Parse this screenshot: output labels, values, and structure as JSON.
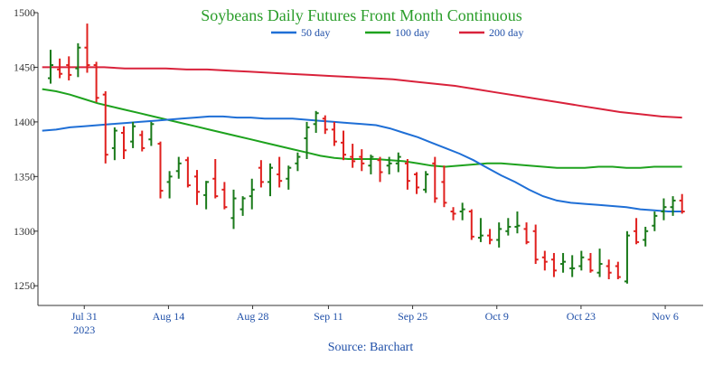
{
  "chart_data": {
    "type": "ohlc",
    "title": "Soybeans Daily Futures Front Month Continuous",
    "source": "Source: Barchart",
    "colors": {
      "title": "#2a9d2a",
      "up": "#1a7a1a",
      "down": "#e0201e",
      "ma50": "#1f6fd6",
      "ma100": "#1ea21e",
      "ma200": "#d9223b",
      "axis": "#333333"
    },
    "ylim": [
      1232,
      1500
    ],
    "y_ticks": [
      1250,
      1300,
      1350,
      1400,
      1450,
      1500
    ],
    "xlim": [
      -1.5,
      77.5
    ],
    "x_ticks": [
      {
        "i": 4,
        "label": "Jul 31",
        "sublabel": "2023"
      },
      {
        "i": 14,
        "label": "Aug 14",
        "sublabel": ""
      },
      {
        "i": 24,
        "label": "Aug 28",
        "sublabel": ""
      },
      {
        "i": 33,
        "label": "Sep 11",
        "sublabel": ""
      },
      {
        "i": 43,
        "label": "Sep 25",
        "sublabel": ""
      },
      {
        "i": 53,
        "label": "Oct 9",
        "sublabel": ""
      },
      {
        "i": 63,
        "label": "Oct 23",
        "sublabel": ""
      },
      {
        "i": 73,
        "label": "Nov 6",
        "sublabel": ""
      }
    ],
    "legend": [
      {
        "name": "50 day",
        "color": "#1f6fd6"
      },
      {
        "name": "100 day",
        "color": "#1ea21e"
      },
      {
        "name": "200 day",
        "color": "#d9223b"
      }
    ],
    "ohlc": [
      [
        1440,
        1466,
        1435,
        1452
      ],
      [
        1448,
        1458,
        1440,
        1444
      ],
      [
        1452,
        1460,
        1438,
        1443
      ],
      [
        1449,
        1472,
        1441,
        1468
      ],
      [
        1468,
        1490,
        1445,
        1452
      ],
      [
        1452,
        1455,
        1418,
        1422
      ],
      [
        1425,
        1428,
        1362,
        1370
      ],
      [
        1376,
        1395,
        1365,
        1392
      ],
      [
        1390,
        1396,
        1366,
        1374
      ],
      [
        1382,
        1400,
        1376,
        1396
      ],
      [
        1388,
        1392,
        1373,
        1376
      ],
      [
        1384,
        1400,
        1378,
        1398
      ],
      [
        1380,
        1382,
        1330,
        1337
      ],
      [
        1345,
        1355,
        1330,
        1350
      ],
      [
        1355,
        1368,
        1348,
        1362
      ],
      [
        1365,
        1368,
        1340,
        1342
      ],
      [
        1350,
        1356,
        1324,
        1336
      ],
      [
        1333,
        1346,
        1320,
        1345
      ],
      [
        1348,
        1366,
        1330,
        1332
      ],
      [
        1338,
        1345,
        1320,
        1322
      ],
      [
        1312,
        1338,
        1302,
        1330
      ],
      [
        1320,
        1332,
        1314,
        1330
      ],
      [
        1332,
        1348,
        1320,
        1338
      ],
      [
        1358,
        1365,
        1340,
        1345
      ],
      [
        1345,
        1362,
        1332,
        1358
      ],
      [
        1352,
        1368,
        1340,
        1346
      ],
      [
        1348,
        1360,
        1338,
        1358
      ],
      [
        1362,
        1372,
        1355,
        1368
      ],
      [
        1385,
        1400,
        1366,
        1395
      ],
      [
        1398,
        1410,
        1390,
        1408
      ],
      [
        1403,
        1406,
        1389,
        1393
      ],
      [
        1393,
        1400,
        1378,
        1382
      ],
      [
        1381,
        1392,
        1365,
        1370
      ],
      [
        1368,
        1380,
        1358,
        1364
      ],
      [
        1368,
        1375,
        1355,
        1362
      ],
      [
        1360,
        1370,
        1352,
        1368
      ],
      [
        1365,
        1368,
        1345,
        1354
      ],
      [
        1360,
        1368,
        1352,
        1362
      ],
      [
        1362,
        1372,
        1354,
        1368
      ],
      [
        1362,
        1366,
        1338,
        1346
      ],
      [
        1352,
        1354,
        1334,
        1340
      ],
      [
        1338,
        1355,
        1335,
        1352
      ],
      [
        1362,
        1368,
        1326,
        1330
      ],
      [
        1345,
        1360,
        1322,
        1326
      ],
      [
        1318,
        1322,
        1310,
        1316
      ],
      [
        1318,
        1326,
        1310,
        1320
      ],
      [
        1318,
        1320,
        1292,
        1295
      ],
      [
        1294,
        1312,
        1290,
        1296
      ],
      [
        1296,
        1302,
        1288,
        1292
      ],
      [
        1292,
        1308,
        1285,
        1302
      ],
      [
        1300,
        1312,
        1296,
        1304
      ],
      [
        1304,
        1318,
        1298,
        1305
      ],
      [
        1302,
        1308,
        1288,
        1290
      ],
      [
        1300,
        1306,
        1270,
        1274
      ],
      [
        1276,
        1282,
        1264,
        1272
      ],
      [
        1274,
        1280,
        1258,
        1264
      ],
      [
        1270,
        1280,
        1262,
        1272
      ],
      [
        1266,
        1278,
        1258,
        1266
      ],
      [
        1268,
        1282,
        1264,
        1276
      ],
      [
        1274,
        1280,
        1262,
        1264
      ],
      [
        1262,
        1284,
        1258,
        1270
      ],
      [
        1268,
        1274,
        1256,
        1262
      ],
      [
        1268,
        1272,
        1256,
        1258
      ],
      [
        1254,
        1300,
        1252,
        1296
      ],
      [
        1300,
        1312,
        1288,
        1290
      ],
      [
        1292,
        1304,
        1286,
        1300
      ],
      [
        1305,
        1318,
        1300,
        1314
      ],
      [
        1318,
        1330,
        1310,
        1322
      ],
      [
        1322,
        1332,
        1314,
        1328
      ],
      [
        1328,
        1334,
        1316,
        1318
      ]
    ],
    "ma50": [
      1392,
      1393,
      1395,
      1396,
      1397,
      1398,
      1399,
      1400,
      1401,
      1402,
      1403,
      1404,
      1405,
      1405,
      1404,
      1404,
      1403,
      1403,
      1403,
      1402,
      1401,
      1400,
      1399,
      1398,
      1397,
      1394,
      1390,
      1386,
      1381,
      1376,
      1371,
      1365,
      1358,
      1351,
      1345,
      1338,
      1332,
      1328,
      1326,
      1325,
      1324,
      1323,
      1322,
      1320,
      1319,
      1318,
      1318
    ],
    "ma100": [
      1430,
      1428,
      1425,
      1421,
      1417,
      1414,
      1411,
      1408,
      1405,
      1402,
      1399,
      1396,
      1393,
      1390,
      1387,
      1384,
      1381,
      1378,
      1375,
      1372,
      1369,
      1367,
      1366,
      1366,
      1366,
      1365,
      1364,
      1362,
      1360,
      1359,
      1360,
      1361,
      1362,
      1362,
      1361,
      1360,
      1359,
      1358,
      1358,
      1358,
      1359,
      1359,
      1358,
      1358,
      1359,
      1359,
      1359
    ],
    "ma200": [
      1450,
      1450,
      1450,
      1450,
      1449,
      1449,
      1449,
      1448,
      1448,
      1447,
      1446,
      1445,
      1444,
      1443,
      1442,
      1441,
      1440,
      1439,
      1437,
      1435,
      1433,
      1430,
      1427,
      1424,
      1421,
      1418,
      1415,
      1412,
      1409,
      1407,
      1405,
      1404
    ]
  }
}
